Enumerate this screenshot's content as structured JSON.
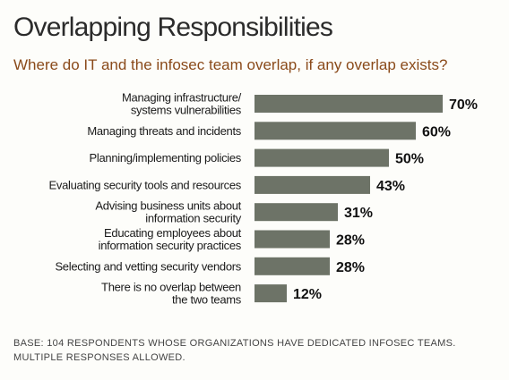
{
  "chart_data": {
    "type": "bar",
    "orientation": "horizontal",
    "title": "Overlapping Responsibilities",
    "subtitle": "Where do IT and the infosec team overlap, if any overlap exists?",
    "categories": [
      [
        "Managing infrastructure/",
        "systems vulnerabilities"
      ],
      [
        "Managing threats and incidents"
      ],
      [
        "Planning/implementing policies"
      ],
      [
        "Evaluating security tools and resources"
      ],
      [
        "Advising business units about",
        "information security"
      ],
      [
        "Educating employees about",
        "information security practices"
      ],
      [
        "Selecting and vetting security vendors"
      ],
      [
        "There is no overlap between",
        "the two teams"
      ]
    ],
    "values": [
      70,
      60,
      50,
      43,
      31,
      28,
      28,
      12
    ],
    "value_labels": [
      "70%",
      "60%",
      "50%",
      "43%",
      "31%",
      "28%",
      "28%",
      "12%"
    ],
    "xlim": [
      0,
      100
    ],
    "bar_color": "#6d7367",
    "grid": false,
    "legend": "none"
  },
  "footnote": "BASE: 104 RESPONDENTS WHOSE ORGANIZATIONS HAVE DEDICATED INFOSEC TEAMS. MULTIPLE RESPONSES ALLOWED."
}
